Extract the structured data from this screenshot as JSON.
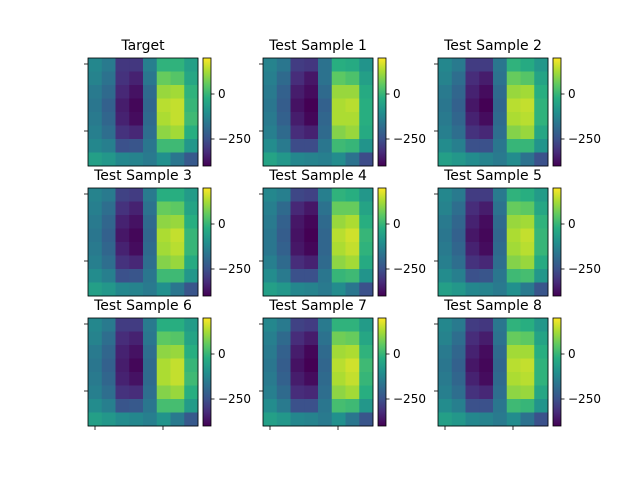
{
  "chart_data": {
    "type": "heatmap",
    "colormap": "viridis",
    "colorbar": {
      "vmin": -400,
      "vmax": 200,
      "ticks": [
        0,
        -250
      ],
      "tick_labels": [
        "0",
        "−250"
      ]
    },
    "panels": [
      {
        "title": "Target",
        "grid": [
          [
            -120,
            -150,
            -300,
            -300,
            -140,
            -10,
            -10,
            -60
          ],
          [
            -130,
            -170,
            -310,
            -340,
            -160,
            60,
            40,
            -40
          ],
          [
            -150,
            -190,
            -330,
            -370,
            -190,
            110,
            120,
            -10
          ],
          [
            -160,
            -210,
            -350,
            -390,
            -200,
            140,
            150,
            0
          ],
          [
            -150,
            -200,
            -340,
            -380,
            -190,
            130,
            150,
            10
          ],
          [
            -140,
            -180,
            -310,
            -330,
            -180,
            100,
            120,
            -20
          ],
          [
            -120,
            -140,
            -250,
            -240,
            -160,
            10,
            10,
            -80
          ],
          [
            -60,
            -80,
            -120,
            -130,
            -150,
            -100,
            -160,
            -230
          ]
        ]
      },
      {
        "title": "Test Sample 1",
        "grid": [
          [
            -130,
            -160,
            -290,
            -300,
            -170,
            -20,
            -30,
            -90
          ],
          [
            -140,
            -190,
            -320,
            -360,
            -170,
            50,
            30,
            -60
          ],
          [
            -150,
            -210,
            -350,
            -380,
            -190,
            110,
            110,
            -30
          ],
          [
            -160,
            -220,
            -370,
            -410,
            -210,
            130,
            140,
            -20
          ],
          [
            -150,
            -210,
            -350,
            -390,
            -200,
            130,
            130,
            -20
          ],
          [
            -140,
            -190,
            -320,
            -340,
            -190,
            90,
            110,
            -30
          ],
          [
            -110,
            -150,
            -260,
            -260,
            -160,
            10,
            0,
            -90
          ],
          [
            -50,
            -80,
            -120,
            -130,
            -140,
            -110,
            -170,
            -260
          ]
        ]
      },
      {
        "title": "Test Sample 2",
        "grid": [
          [
            -120,
            -150,
            -290,
            -290,
            -160,
            -10,
            -30,
            -80
          ],
          [
            -130,
            -180,
            -320,
            -350,
            -170,
            60,
            40,
            -50
          ],
          [
            -150,
            -200,
            -340,
            -380,
            -190,
            110,
            120,
            -20
          ],
          [
            -160,
            -210,
            -360,
            -400,
            -200,
            140,
            150,
            -10
          ],
          [
            -150,
            -200,
            -340,
            -380,
            -190,
            130,
            140,
            -10
          ],
          [
            -140,
            -180,
            -310,
            -330,
            -180,
            90,
            110,
            -40
          ],
          [
            -110,
            -140,
            -250,
            -250,
            -160,
            0,
            0,
            -90
          ],
          [
            -60,
            -80,
            -110,
            -130,
            -150,
            -110,
            -170,
            -250
          ]
        ]
      },
      {
        "title": "Test Sample 3",
        "grid": [
          [
            -130,
            -150,
            -280,
            -290,
            -150,
            -20,
            -20,
            -70
          ],
          [
            -140,
            -180,
            -310,
            -340,
            -170,
            60,
            50,
            -50
          ],
          [
            -150,
            -200,
            -340,
            -370,
            -190,
            100,
            110,
            -20
          ],
          [
            -160,
            -210,
            -360,
            -390,
            -200,
            130,
            150,
            0
          ],
          [
            -150,
            -200,
            -340,
            -380,
            -190,
            120,
            140,
            0
          ],
          [
            -140,
            -180,
            -310,
            -330,
            -180,
            90,
            110,
            -30
          ],
          [
            -110,
            -140,
            -250,
            -240,
            -160,
            10,
            10,
            -80
          ],
          [
            -60,
            -80,
            -120,
            -130,
            -150,
            -100,
            -160,
            -240
          ]
        ]
      },
      {
        "title": "Test Sample 4",
        "grid": [
          [
            -120,
            -140,
            -270,
            -280,
            -140,
            -10,
            -20,
            -80
          ],
          [
            -140,
            -190,
            -330,
            -360,
            -170,
            60,
            60,
            -50
          ],
          [
            -150,
            -210,
            -360,
            -390,
            -190,
            110,
            130,
            -20
          ],
          [
            -160,
            -220,
            -370,
            -410,
            -200,
            140,
            160,
            0
          ],
          [
            -160,
            -210,
            -360,
            -390,
            -200,
            130,
            150,
            -10
          ],
          [
            -140,
            -190,
            -320,
            -340,
            -190,
            100,
            120,
            -30
          ],
          [
            -110,
            -150,
            -250,
            -250,
            -160,
            0,
            10,
            -90
          ],
          [
            -60,
            -80,
            -120,
            -130,
            -150,
            -110,
            -160,
            -250
          ]
        ]
      },
      {
        "title": "Test Sample 5",
        "grid": [
          [
            -120,
            -150,
            -290,
            -290,
            -150,
            -10,
            -20,
            -70
          ],
          [
            -130,
            -180,
            -320,
            -350,
            -170,
            60,
            50,
            -40
          ],
          [
            -150,
            -200,
            -340,
            -380,
            -190,
            110,
            120,
            -10
          ],
          [
            -160,
            -210,
            -360,
            -390,
            -200,
            130,
            150,
            0
          ],
          [
            -150,
            -200,
            -340,
            -380,
            -190,
            120,
            140,
            0
          ],
          [
            -140,
            -180,
            -310,
            -330,
            -180,
            90,
            110,
            -30
          ],
          [
            -110,
            -140,
            -250,
            -240,
            -160,
            10,
            20,
            -80
          ],
          [
            -60,
            -80,
            -120,
            -130,
            -150,
            -100,
            -150,
            -240
          ]
        ]
      },
      {
        "title": "Test Sample 6",
        "grid": [
          [
            -120,
            -150,
            -290,
            -290,
            -150,
            -20,
            -20,
            -70
          ],
          [
            -130,
            -180,
            -320,
            -340,
            -160,
            50,
            40,
            -50
          ],
          [
            -150,
            -200,
            -340,
            -370,
            -180,
            100,
            110,
            -20
          ],
          [
            -160,
            -210,
            -350,
            -390,
            -190,
            130,
            150,
            0
          ],
          [
            -150,
            -200,
            -340,
            -370,
            -190,
            130,
            150,
            10
          ],
          [
            -140,
            -180,
            -310,
            -320,
            -180,
            90,
            110,
            -20
          ],
          [
            -110,
            -140,
            -240,
            -230,
            -160,
            20,
            20,
            -70
          ],
          [
            -60,
            -80,
            -110,
            -120,
            -140,
            -90,
            -150,
            -230
          ]
        ]
      },
      {
        "title": "Test Sample 7",
        "grid": [
          [
            -120,
            -150,
            -280,
            -290,
            -150,
            -10,
            -10,
            -70
          ],
          [
            -140,
            -190,
            -320,
            -350,
            -170,
            70,
            60,
            -40
          ],
          [
            -150,
            -210,
            -350,
            -390,
            -190,
            120,
            130,
            -10
          ],
          [
            -160,
            -220,
            -370,
            -400,
            -200,
            140,
            160,
            10
          ],
          [
            -150,
            -210,
            -350,
            -380,
            -190,
            130,
            150,
            0
          ],
          [
            -140,
            -190,
            -320,
            -330,
            -180,
            100,
            120,
            -20
          ],
          [
            -110,
            -150,
            -250,
            -250,
            -160,
            20,
            10,
            -80
          ],
          [
            -60,
            -80,
            -120,
            -130,
            -150,
            -100,
            -160,
            -240
          ]
        ]
      },
      {
        "title": "Test Sample 8",
        "grid": [
          [
            -120,
            -150,
            -290,
            -300,
            -160,
            -10,
            -20,
            -80
          ],
          [
            -130,
            -180,
            -320,
            -350,
            -170,
            60,
            50,
            -50
          ],
          [
            -150,
            -200,
            -340,
            -380,
            -190,
            120,
            120,
            -20
          ],
          [
            -160,
            -210,
            -360,
            -390,
            -200,
            140,
            150,
            -10
          ],
          [
            -150,
            -200,
            -340,
            -380,
            -190,
            130,
            140,
            -10
          ],
          [
            -140,
            -180,
            -310,
            -330,
            -180,
            100,
            110,
            -40
          ],
          [
            -110,
            -140,
            -250,
            -250,
            -160,
            10,
            0,
            -90
          ],
          [
            -60,
            -80,
            -120,
            -130,
            -150,
            -110,
            -170,
            -250
          ]
        ]
      }
    ]
  },
  "colors": {
    "axis": "#000000",
    "background": "#ffffff"
  }
}
